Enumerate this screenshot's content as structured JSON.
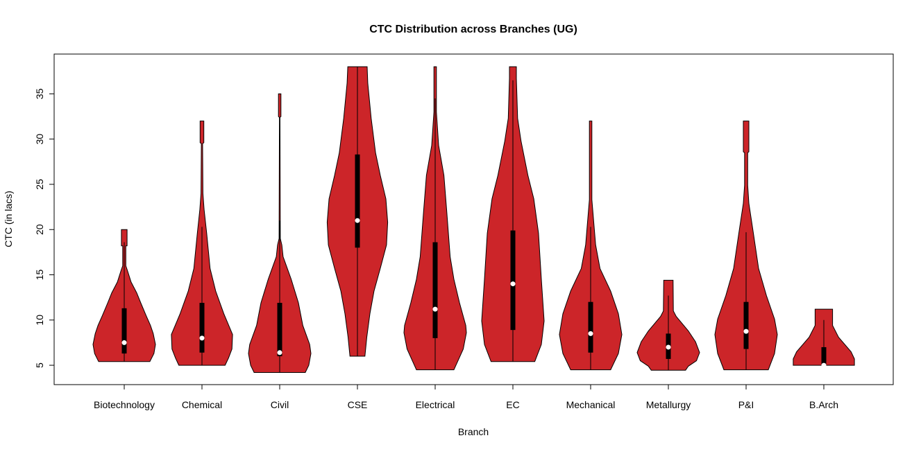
{
  "chart_data": {
    "type": "violin",
    "title": "CTC Distribution across Branches (UG)",
    "xlabel": "Branch",
    "ylabel": "CTC (in lacs)",
    "ylim": [
      2.86,
      39.4
    ],
    "yticks": [
      5,
      10,
      15,
      20,
      25,
      30,
      35
    ],
    "ytick_labels": [
      "5",
      "10",
      "15",
      "20",
      "25",
      "30",
      "35"
    ],
    "grid": false,
    "fill_color": "#CC2529",
    "box_color": "#000000",
    "median_color": "#FFFFFF",
    "categories": [
      "Biotechnology",
      "Chemical",
      "Civil",
      "CSE",
      "Electrical",
      "EC",
      "Mechanical",
      "Metallurgy",
      "P&I",
      "B.Arch"
    ],
    "violins": [
      {
        "name": "Biotechnology",
        "min": 5.4,
        "q1": 6.3,
        "median": 7.5,
        "q3": 11.3,
        "whisker_high": 18.6,
        "max": 20,
        "density": [
          [
            5.4,
            0.82
          ],
          [
            6.3,
            0.95
          ],
          [
            7.3,
            1.0
          ],
          [
            8.5,
            0.93
          ],
          [
            9.4,
            0.84
          ],
          [
            10.5,
            0.7
          ],
          [
            11.9,
            0.53
          ],
          [
            13,
            0.4
          ],
          [
            14.2,
            0.22
          ],
          [
            15.5,
            0.1
          ],
          [
            16,
            0.05
          ],
          [
            18.2,
            0.05
          ],
          [
            18.2,
            0.09
          ],
          [
            20,
            0.09
          ]
        ]
      },
      {
        "name": "Chemical",
        "min": 5.0,
        "q1": 6.4,
        "median": 8.0,
        "q3": 11.9,
        "whisker_high": 20.3,
        "max": 32,
        "density": [
          [
            5,
            0.74
          ],
          [
            5.8,
            0.85
          ],
          [
            6.8,
            0.96
          ],
          [
            8.4,
            0.98
          ],
          [
            10.7,
            0.7
          ],
          [
            13.2,
            0.44
          ],
          [
            15.7,
            0.26
          ],
          [
            19.6,
            0.15
          ],
          [
            22.2,
            0.07
          ],
          [
            24,
            0.03
          ],
          [
            29.5,
            0.02
          ],
          [
            29.6,
            0.06
          ],
          [
            32,
            0.06
          ]
        ]
      },
      {
        "name": "Civil",
        "min": 4.2,
        "q1": 6.0,
        "median": 6.4,
        "q3": 11.9,
        "whisker_high": 21,
        "max": 35,
        "density": [
          [
            4.2,
            0.82
          ],
          [
            5,
            0.93
          ],
          [
            6.3,
            1.0
          ],
          [
            7.3,
            0.96
          ],
          [
            9.4,
            0.74
          ],
          [
            11.9,
            0.6
          ],
          [
            14.5,
            0.37
          ],
          [
            17,
            0.11
          ],
          [
            18.3,
            0.07
          ],
          [
            19,
            0.02
          ],
          [
            32.4,
            0.01
          ],
          [
            32.5,
            0.04
          ],
          [
            35,
            0.04
          ]
        ]
      },
      {
        "name": "CSE",
        "min": 6.0,
        "q1": 18.0,
        "median": 21.0,
        "q3": 28.3,
        "whisker_high": 38,
        "max": 38,
        "density": [
          [
            6,
            0.24
          ],
          [
            8.1,
            0.3
          ],
          [
            10.7,
            0.4
          ],
          [
            13.2,
            0.53
          ],
          [
            15.7,
            0.73
          ],
          [
            18.3,
            0.93
          ],
          [
            20.8,
            0.97
          ],
          [
            23.4,
            0.91
          ],
          [
            26,
            0.73
          ],
          [
            28.5,
            0.58
          ],
          [
            32.3,
            0.44
          ],
          [
            36.2,
            0.33
          ],
          [
            38,
            0.31
          ]
        ]
      },
      {
        "name": "Electrical",
        "min": 4.5,
        "q1": 8.0,
        "median": 11.2,
        "q3": 18.6,
        "whisker_high": 34.5,
        "max": 38,
        "density": [
          [
            4.5,
            0.6
          ],
          [
            6.8,
            0.9
          ],
          [
            8.6,
            1.0
          ],
          [
            9.4,
            0.98
          ],
          [
            11.9,
            0.78
          ],
          [
            14.5,
            0.6
          ],
          [
            17,
            0.48
          ],
          [
            22.1,
            0.37
          ],
          [
            26,
            0.28
          ],
          [
            29.3,
            0.11
          ],
          [
            33,
            0.04
          ],
          [
            38,
            0.04
          ]
        ]
      },
      {
        "name": "EC",
        "min": 5.4,
        "q1": 8.9,
        "median": 14.0,
        "q3": 19.9,
        "whisker_high": 36.5,
        "max": 38,
        "density": [
          [
            5.4,
            0.7
          ],
          [
            7.3,
            0.91
          ],
          [
            9.9,
            1.0
          ],
          [
            14.5,
            0.91
          ],
          [
            19.6,
            0.82
          ],
          [
            23.4,
            0.67
          ],
          [
            26,
            0.48
          ],
          [
            29.8,
            0.26
          ],
          [
            32.3,
            0.15
          ],
          [
            36.7,
            0.11
          ],
          [
            38,
            0.11
          ]
        ]
      },
      {
        "name": "Mechanical",
        "min": 4.5,
        "q1": 6.4,
        "median": 8.5,
        "q3": 12.0,
        "whisker_high": 20.3,
        "max": 32,
        "density": [
          [
            4.5,
            0.64
          ],
          [
            6.3,
            0.89
          ],
          [
            8.4,
            1.0
          ],
          [
            10.7,
            0.89
          ],
          [
            13.2,
            0.64
          ],
          [
            15.7,
            0.3
          ],
          [
            18.3,
            0.16
          ],
          [
            22.1,
            0.07
          ],
          [
            23.3,
            0.04
          ],
          [
            32,
            0.04
          ]
        ]
      },
      {
        "name": "Metallurgy",
        "min": 4.45,
        "q1": 5.7,
        "median": 7.0,
        "q3": 8.5,
        "whisker_high": 12.7,
        "max": 14.4,
        "density": [
          [
            4.45,
            0.55
          ],
          [
            4.9,
            0.64
          ],
          [
            5.5,
            0.9
          ],
          [
            6.4,
            1.0
          ],
          [
            7.6,
            0.87
          ],
          [
            8.8,
            0.64
          ],
          [
            10.4,
            0.25
          ],
          [
            11,
            0.16
          ],
          [
            14.4,
            0.15
          ]
        ]
      },
      {
        "name": "P&I",
        "min": 4.5,
        "q1": 6.8,
        "median": 8.75,
        "q3": 12.0,
        "whisker_high": 19.7,
        "max": 32,
        "density": [
          [
            4.5,
            0.71
          ],
          [
            6.3,
            0.91
          ],
          [
            8.4,
            1.0
          ],
          [
            10.1,
            0.91
          ],
          [
            12.7,
            0.65
          ],
          [
            15.7,
            0.4
          ],
          [
            19.9,
            0.22
          ],
          [
            22.9,
            0.09
          ],
          [
            24.9,
            0.05
          ],
          [
            28.5,
            0.05
          ],
          [
            28.6,
            0.09
          ],
          [
            32,
            0.09
          ]
        ]
      },
      {
        "name": "B.Arch",
        "min": 5.0,
        "q1": 5.0,
        "median": 5.0,
        "q3": 7.0,
        "whisker_high": 10.0,
        "max": 11.2,
        "density": [
          [
            5,
            0.98
          ],
          [
            5.7,
            0.98
          ],
          [
            6.5,
            0.87
          ],
          [
            8.1,
            0.47
          ],
          [
            9.4,
            0.28
          ],
          [
            11.2,
            0.28
          ]
        ]
      }
    ]
  }
}
